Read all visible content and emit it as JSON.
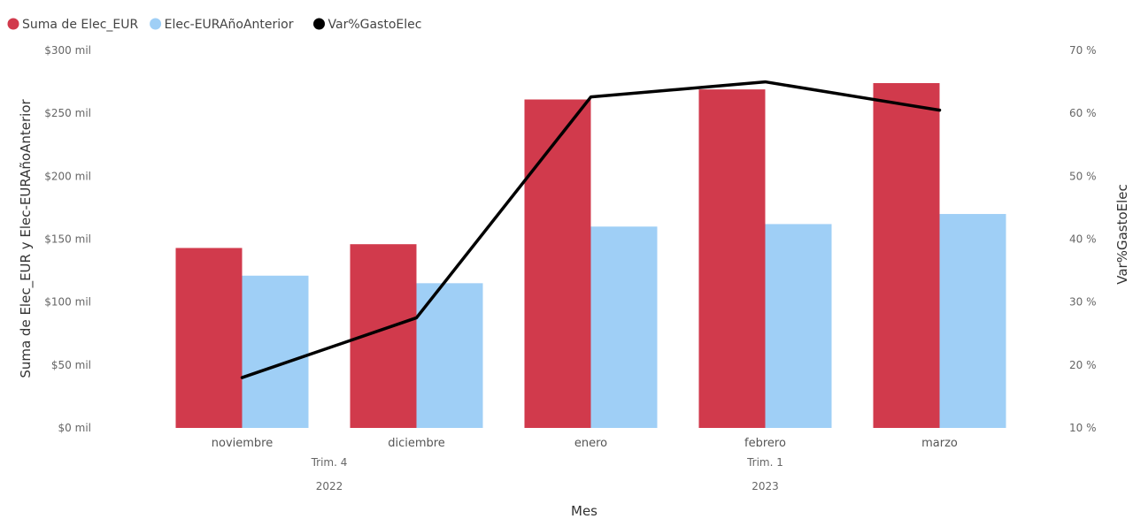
{
  "chart_data": {
    "type": "bar",
    "legend": {
      "placement": "top-left",
      "items": [
        {
          "label": "Suma de Elec_EUR",
          "color": "#d13a4c"
        },
        {
          "label": "Elec-EURAñoAnterior",
          "color": "#9fcff6"
        },
        {
          "label": "Var%GastoElec",
          "color": "#000000"
        }
      ]
    },
    "categories": [
      "noviembre",
      "diciembre",
      "enero",
      "febrero",
      "marzo"
    ],
    "quarters": [
      {
        "label": "Trim. 4",
        "span": [
          0,
          1
        ]
      },
      {
        "label": "Trim. 1",
        "span": [
          2,
          4
        ]
      }
    ],
    "years": [
      {
        "label": "2022",
        "span": [
          0,
          1
        ]
      },
      {
        "label": "2023",
        "span": [
          2,
          4
        ]
      }
    ],
    "series": [
      {
        "name": "Suma de Elec_EUR",
        "type": "bar",
        "axis": "left",
        "color": "#d13a4c",
        "values": [
          143000,
          146000,
          261000,
          269000,
          274000
        ]
      },
      {
        "name": "Elec-EURAñoAnterior",
        "type": "bar",
        "axis": "left",
        "color": "#9fcff6",
        "values": [
          121000,
          115000,
          160000,
          162000,
          170000
        ]
      },
      {
        "name": "Var%GastoElec",
        "type": "line",
        "axis": "right",
        "color": "#000000",
        "values": [
          18,
          27.5,
          62.6,
          65,
          60.5
        ]
      }
    ],
    "y_left": {
      "label": "Suma de Elec_EUR y Elec-EURAñoAnterior",
      "ylim": [
        0,
        300000
      ],
      "ticks": [
        0,
        50000,
        100000,
        150000,
        200000,
        250000,
        300000
      ],
      "tick_labels": [
        "$0 mil",
        "$50 mil",
        "$100 mil",
        "$150 mil",
        "$200 mil",
        "$250 mil",
        "$300 mil"
      ]
    },
    "y_right": {
      "label": "Var%GastoElec",
      "ylim": [
        10,
        70
      ],
      "ticks": [
        10,
        20,
        30,
        40,
        50,
        60,
        70
      ],
      "tick_labels": [
        "10 %",
        "20 %",
        "30 %",
        "40 %",
        "50 %",
        "60 %",
        "70 %"
      ]
    },
    "xlabel": "Mes",
    "grid": false
  }
}
